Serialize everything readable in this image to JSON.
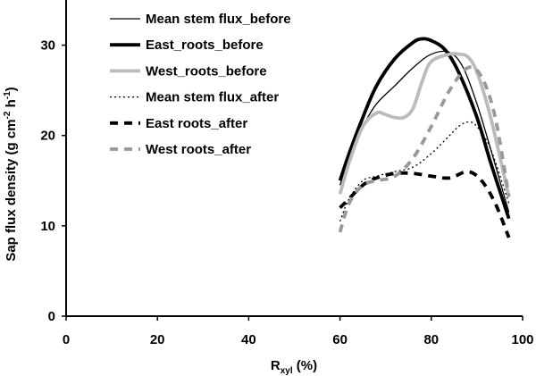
{
  "chart_data": {
    "type": "line",
    "xlabel": {
      "main": "R",
      "sub": "xyl",
      "suffix": " (%)"
    },
    "ylabel": {
      "main": "Sap flux density (g cm",
      "sup1": "-2",
      "mid": " h",
      "sup2": "-1",
      "end": ")"
    },
    "xlim": [
      0,
      100
    ],
    "ylim": [
      0,
      35
    ],
    "x_ticks": [
      0,
      20,
      40,
      60,
      80,
      100
    ],
    "y_ticks": [
      0,
      10,
      20,
      30
    ],
    "legend_position": "top-left",
    "series": [
      {
        "name": "Mean stem flux_before",
        "color": "#000000",
        "width": 1.3,
        "dash": "",
        "x": [
          60,
          62,
          65,
          68,
          72,
          76,
          80,
          84,
          87,
          90,
          93,
          97
        ],
        "y": [
          14.5,
          17.5,
          21,
          23.5,
          25.5,
          27.5,
          29,
          29.2,
          27.5,
          23.5,
          18.5,
          11.5
        ]
      },
      {
        "name": "East_roots_before",
        "color": "#000000",
        "width": 3.8,
        "dash": "",
        "x": [
          60,
          62,
          65,
          68,
          72,
          76,
          78,
          80,
          83,
          86,
          90,
          93,
          97
        ],
        "y": [
          15,
          18,
          22,
          25.5,
          28.5,
          30.3,
          30.7,
          30.5,
          29.5,
          27,
          22,
          17,
          10.8
        ]
      },
      {
        "name": "West_roots_before",
        "color": "#bbbbbb",
        "width": 3.8,
        "dash": "",
        "x": [
          60,
          62,
          65,
          68,
          70,
          72,
          74,
          76,
          78,
          80,
          84,
          86,
          88,
          90,
          93,
          97
        ],
        "y": [
          13.5,
          17,
          21,
          22.5,
          22.3,
          22,
          22,
          23,
          26,
          28.2,
          29,
          29,
          28.7,
          27,
          22,
          13.2
        ]
      },
      {
        "name": "Mean stem flux_after",
        "color": "#000000",
        "width": 1.3,
        "dash": "2,3",
        "x": [
          60,
          62,
          65,
          68,
          72,
          76,
          80,
          84,
          86,
          88,
          90,
          93,
          97
        ],
        "y": [
          10.5,
          13,
          15,
          15.5,
          16,
          16.5,
          18,
          20,
          21,
          21.5,
          21,
          18.5,
          12.5
        ]
      },
      {
        "name": "East roots_after",
        "color": "#000000",
        "width": 3.8,
        "dash": "9,7",
        "x": [
          60,
          62,
          65,
          68,
          72,
          76,
          80,
          84,
          88,
          91,
          94,
          97
        ],
        "y": [
          12,
          13,
          14.5,
          15.3,
          15.8,
          15.8,
          15.5,
          15.3,
          16,
          15,
          12.5,
          8.7
        ]
      },
      {
        "name": "West roots_after",
        "color": "#999999",
        "width": 3.8,
        "dash": "9,7",
        "x": [
          60,
          62,
          65,
          68,
          72,
          76,
          80,
          84,
          88,
          91,
          94,
          97
        ],
        "y": [
          9.3,
          12.5,
          14.5,
          15,
          15.5,
          17.5,
          21,
          25,
          27.5,
          26.5,
          22,
          13.2
        ]
      }
    ]
  }
}
